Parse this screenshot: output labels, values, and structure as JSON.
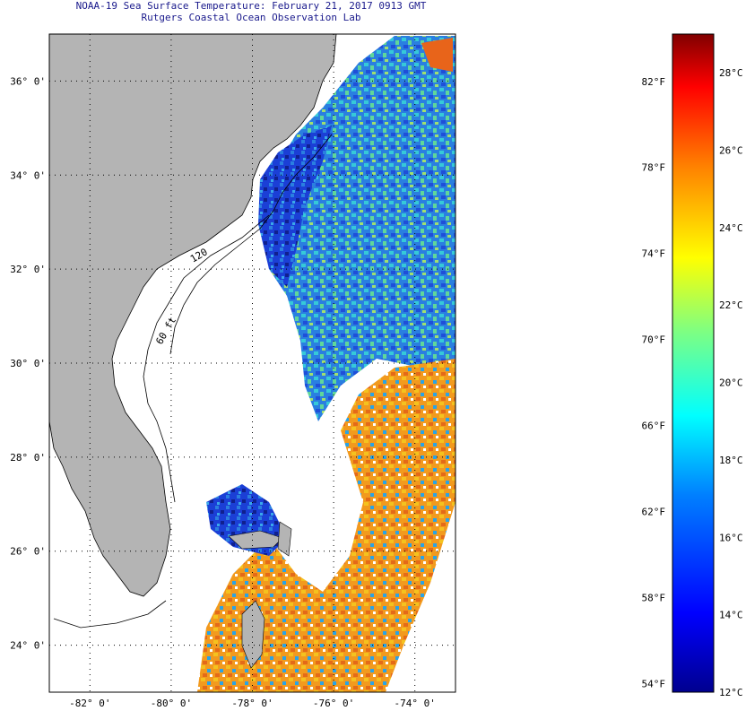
{
  "header": {
    "title": "NOAA-19 Sea Surface Temperature:  February 21, 2017 0913 GMT",
    "subtitle": "Rutgers Coastal Ocean Observation Lab"
  },
  "map": {
    "lon_range": [
      -83,
      -73
    ],
    "lat_range": [
      23,
      37
    ],
    "lat_ticks": [
      {
        "value": 36,
        "label": "36° 0'"
      },
      {
        "value": 34,
        "label": "34° 0'"
      },
      {
        "value": 32,
        "label": "32° 0'"
      },
      {
        "value": 30,
        "label": "30° 0'"
      },
      {
        "value": 28,
        "label": "28° 0'"
      },
      {
        "value": 26,
        "label": "26° 0'"
      },
      {
        "value": 24,
        "label": "24° 0'"
      }
    ],
    "lon_ticks": [
      {
        "value": -82,
        "label": "-82° 0'"
      },
      {
        "value": -80,
        "label": "-80° 0'"
      },
      {
        "value": -78,
        "label": "-78° 0'"
      },
      {
        "value": -76,
        "label": "-76° 0'"
      },
      {
        "value": -74,
        "label": "-74° 0'"
      }
    ],
    "contour_labels": [
      "120",
      "60 ft"
    ],
    "colors": {
      "land": "#b4b4b4",
      "cloud": "#ffffff",
      "grid": "#000000"
    }
  },
  "colorbar": {
    "min_c": 12,
    "max_c": 29,
    "celsius_ticks": [
      {
        "value": 28,
        "label": "28°C"
      },
      {
        "value": 26,
        "label": "26°C"
      },
      {
        "value": 24,
        "label": "24°C"
      },
      {
        "value": 22,
        "label": "22°C"
      },
      {
        "value": 20,
        "label": "20°C"
      },
      {
        "value": 18,
        "label": "18°C"
      },
      {
        "value": 16,
        "label": "16°C"
      },
      {
        "value": 14,
        "label": "14°C"
      },
      {
        "value": 12,
        "label": "12°C"
      }
    ],
    "fahrenheit_ticks": [
      {
        "value": 82,
        "label": "82°F"
      },
      {
        "value": 78,
        "label": "78°F"
      },
      {
        "value": 74,
        "label": "74°F"
      },
      {
        "value": 70,
        "label": "70°F"
      },
      {
        "value": 66,
        "label": "66°F"
      },
      {
        "value": 62,
        "label": "62°F"
      },
      {
        "value": 58,
        "label": "58°F"
      },
      {
        "value": 54,
        "label": "54°F"
      }
    ],
    "stops": [
      "#00008f",
      "#0000ff",
      "#0080ff",
      "#00ffff",
      "#80ff80",
      "#ffff00",
      "#ff8000",
      "#ff0000",
      "#800000"
    ]
  }
}
